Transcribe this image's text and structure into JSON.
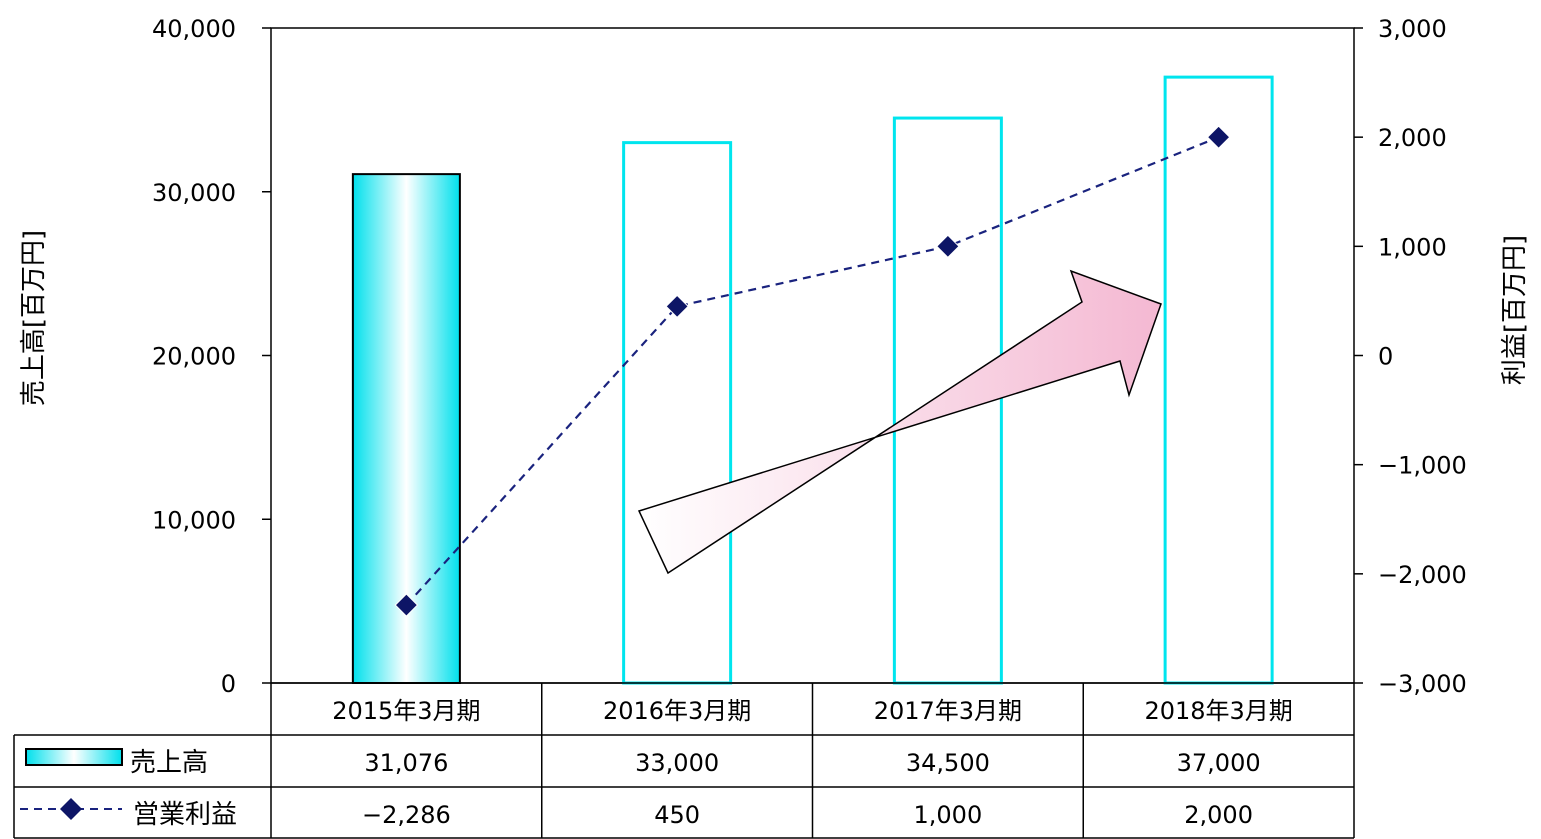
{
  "chart_data": {
    "type": "bar",
    "categories": [
      "2015年3月期",
      "2016年3月期",
      "2017年3月期",
      "2018年3月期"
    ],
    "series": [
      {
        "name": "売上高",
        "type": "bar",
        "axis": "left",
        "values": [
          31076,
          33000,
          34500,
          37000
        ]
      },
      {
        "name": "営業利益",
        "type": "line",
        "axis": "right",
        "values": [
          -2286,
          450,
          1000,
          2000
        ]
      }
    ],
    "ylabel": "売上高[百万円]",
    "y2label": "利益[百万円]",
    "ylim": [
      0,
      40000
    ],
    "y2lim": [
      -3000,
      3000
    ],
    "yticks": [
      "0",
      "10,000",
      "20,000",
      "30,000",
      "40,000"
    ],
    "y2ticks": [
      "−3,000",
      "−2,000",
      "−1,000",
      "0",
      "1,000",
      "2,000",
      "3,000"
    ],
    "table": {
      "rows": [
        {
          "label": "売上高",
          "values": [
            "31,076",
            "33,000",
            "34,500",
            "37,000"
          ]
        },
        {
          "label": "営業利益",
          "values": [
            "−2,286",
            "450",
            "1,000",
            "2,000"
          ]
        }
      ]
    },
    "colors": {
      "bar_outline": "#00e5ee",
      "bar_fill_edge": "#00e0ec",
      "line": "#1a237e",
      "marker": "#0d1566",
      "arrow_fill": "#f6c6d9"
    }
  }
}
